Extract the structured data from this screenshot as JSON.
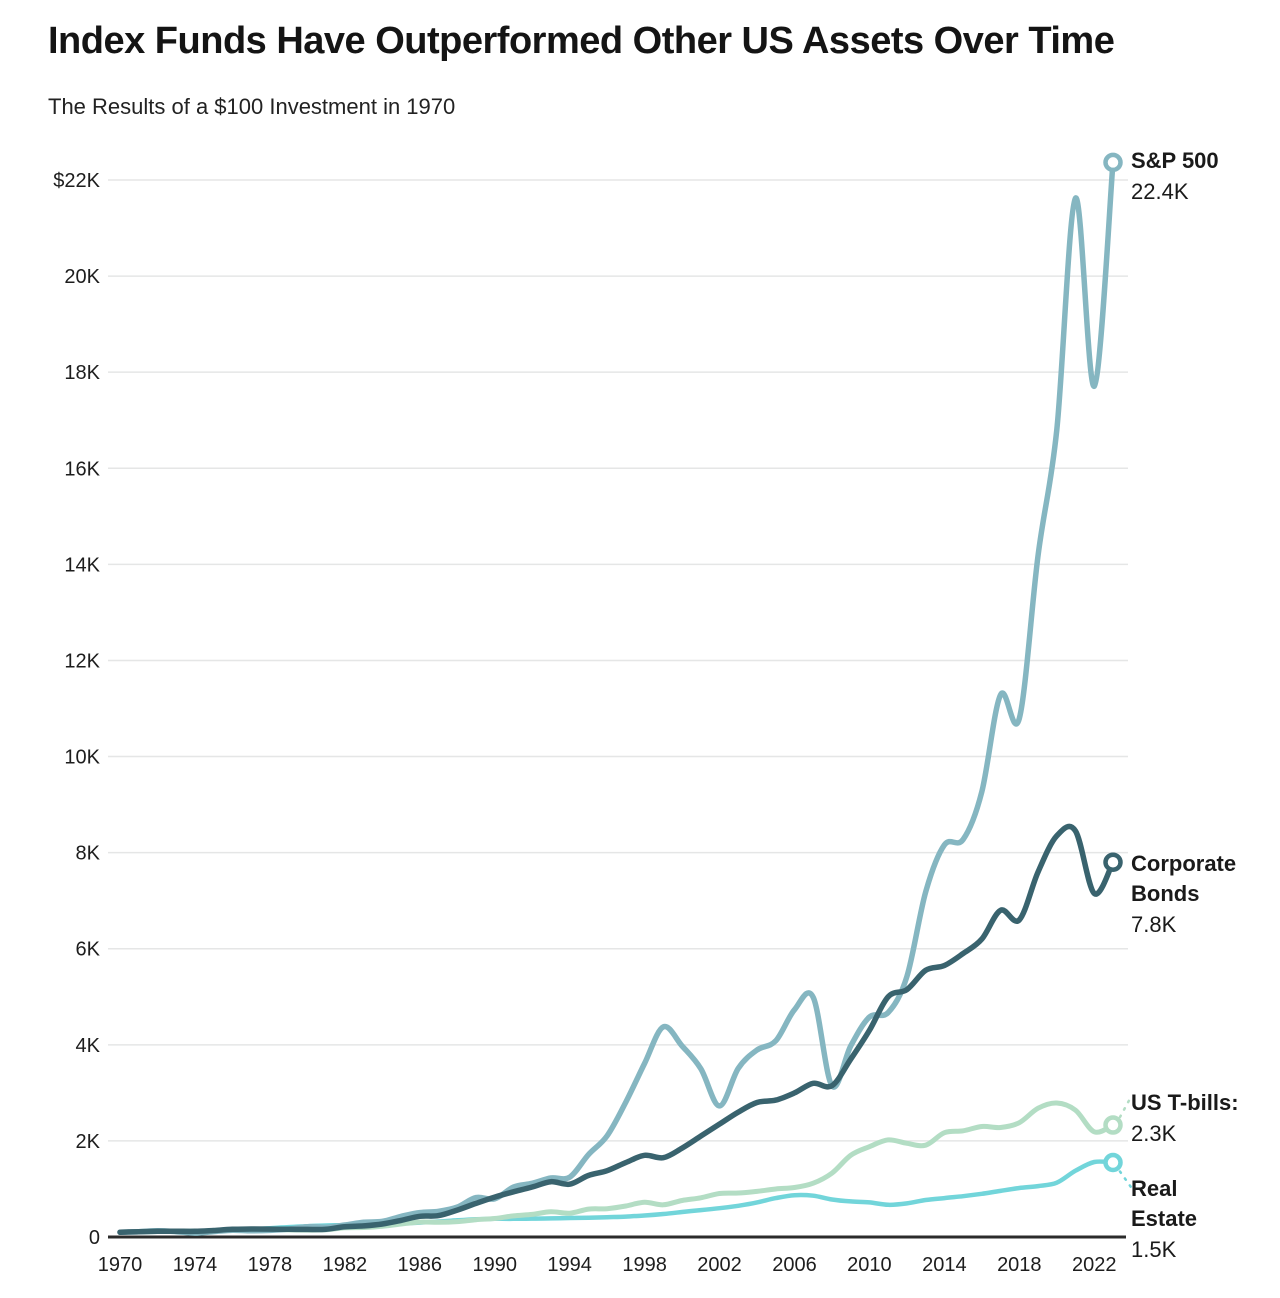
{
  "header": {
    "title": "Index Funds Have Outperformed Other US Assets Over Time",
    "subtitle": "The Results of a $100 Investment in 1970"
  },
  "colors": {
    "sp500": "#85b6c1",
    "corporate_bonds": "#39636e",
    "us_tbills": "#b3ddc4",
    "real_estate": "#72d5da",
    "gridline": "#e5e6e6",
    "axis_line": "#2b2b2b",
    "text": "#1a1a1a"
  },
  "chart_data": {
    "type": "line",
    "title": "Index Funds Have Outperformed Other US Assets Over Time",
    "subtitle": "The Results of a $100 Investment in 1970",
    "xlabel": "",
    "ylabel": "",
    "grid": "horizontal",
    "legend_position": "right-end-labels",
    "x_range": [
      1970,
      2023
    ],
    "ylim": [
      0,
      22400
    ],
    "x_ticks": [
      1970,
      1974,
      1978,
      1982,
      1986,
      1990,
      1994,
      1998,
      2002,
      2006,
      2010,
      2014,
      2018,
      2022
    ],
    "y_ticks": [
      {
        "value": 0,
        "label": "0"
      },
      {
        "value": 2000,
        "label": "2K"
      },
      {
        "value": 4000,
        "label": "4K"
      },
      {
        "value": 6000,
        "label": "6K"
      },
      {
        "value": 8000,
        "label": "8K"
      },
      {
        "value": 10000,
        "label": "10K"
      },
      {
        "value": 12000,
        "label": "12K"
      },
      {
        "value": 14000,
        "label": "14K"
      },
      {
        "value": 16000,
        "label": "16K"
      },
      {
        "value": 18000,
        "label": "18K"
      },
      {
        "value": 20000,
        "label": "20K"
      },
      {
        "value": 22000,
        "label": "$22K"
      }
    ],
    "years": [
      1970,
      1971,
      1972,
      1973,
      1974,
      1975,
      1976,
      1977,
      1978,
      1979,
      1980,
      1981,
      1982,
      1983,
      1984,
      1985,
      1986,
      1987,
      1988,
      1989,
      1990,
      1991,
      1992,
      1993,
      1994,
      1995,
      1996,
      1997,
      1998,
      1999,
      2000,
      2001,
      2002,
      2003,
      2004,
      2005,
      2006,
      2007,
      2008,
      2009,
      2010,
      2011,
      2012,
      2013,
      2014,
      2015,
      2016,
      2017,
      2018,
      2019,
      2020,
      2021,
      2022,
      2023
    ],
    "series": [
      {
        "id": "sp500",
        "name": "S&P 500",
        "end_value_label": "22.4K",
        "color": "#85b6c1",
        "stroke_width": 5.5,
        "leader": "none",
        "values": [
          100,
          110,
          130,
          111,
          82,
          112,
          139,
          129,
          137,
          163,
          215,
          205,
          249,
          306,
          325,
          428,
          508,
          535,
          623,
          821,
          795,
          1038,
          1117,
          1229,
          1245,
          1713,
          2107,
          2810,
          3614,
          4373,
          3976,
          3503,
          2728,
          3511,
          3893,
          4084,
          4730,
          4990,
          3144,
          3976,
          4577,
          4673,
          5421,
          7177,
          8160,
          8274,
          9267,
          11288,
          10791,
          14190,
          16801,
          21623,
          17709,
          22366
        ]
      },
      {
        "id": "corporate-bonds",
        "name": "Corporate Bonds",
        "end_value_label": "7.8K",
        "color": "#39636e",
        "stroke_width": 5.5,
        "leader": "none",
        "values": [
          100,
          110,
          119,
          121,
          118,
          136,
          160,
          166,
          165,
          160,
          158,
          162,
          215,
          232,
          270,
          345,
          430,
          445,
          560,
          700,
          830,
          940,
          1040,
          1150,
          1100,
          1280,
          1380,
          1550,
          1700,
          1650,
          1850,
          2100,
          2350,
          2600,
          2800,
          2850,
          3000,
          3200,
          3150,
          3700,
          4300,
          5000,
          5150,
          5550,
          5650,
          5900,
          6200,
          6800,
          6600,
          7600,
          8350,
          8450,
          7150,
          7800
        ]
      },
      {
        "id": "us-tbills",
        "name": "US T-bills:",
        "end_value_label": "2.3K",
        "color": "#b3ddc4",
        "stroke_width": 5,
        "leader": "up",
        "values": [
          100,
          108,
          114,
          117,
          122,
          130,
          145,
          149,
          148,
          147,
          144,
          150,
          192,
          198,
          224,
          270,
          310,
          305,
          320,
          360,
          385,
          440,
          470,
          525,
          495,
          580,
          590,
          645,
          725,
          670,
          760,
          815,
          905,
          915,
          950,
          1000,
          1030,
          1120,
          1330,
          1700,
          1880,
          2020,
          1950,
          1910,
          2170,
          2210,
          2300,
          2280,
          2380,
          2680,
          2790,
          2640,
          2190,
          2330
        ]
      },
      {
        "id": "real-estate",
        "name": "Real Estate",
        "end_value_label": "1.5K",
        "color": "#72d5da",
        "stroke_width": 4.5,
        "leader": "down",
        "values": [
          100,
          104,
          109,
          117,
          126,
          135,
          146,
          162,
          183,
          207,
          225,
          240,
          247,
          255,
          266,
          280,
          300,
          322,
          347,
          370,
          380,
          378,
          382,
          387,
          395,
          402,
          412,
          425,
          448,
          478,
          520,
          560,
          600,
          650,
          720,
          810,
          870,
          860,
          780,
          740,
          720,
          670,
          700,
          770,
          810,
          850,
          900,
          960,
          1020,
          1060,
          1130,
          1380,
          1560,
          1550
        ]
      }
    ]
  }
}
